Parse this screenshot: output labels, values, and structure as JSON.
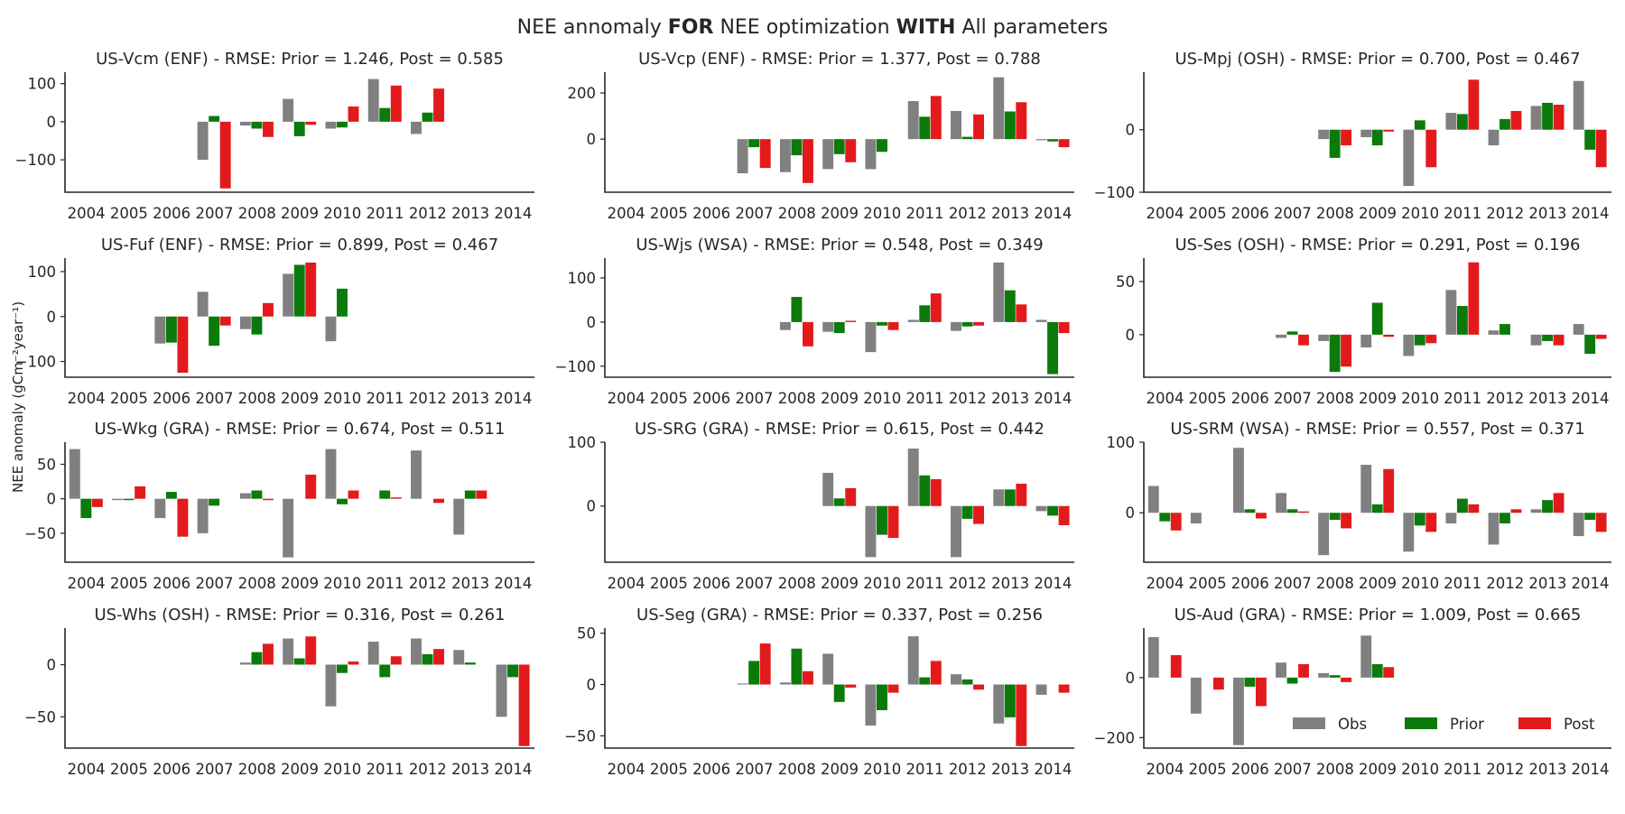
{
  "figure": {
    "suptitle": {
      "parts": [
        {
          "text": "NEE annomaly ",
          "bold": false
        },
        {
          "text": "FOR",
          "bold": true
        },
        {
          "text": " NEE optimization ",
          "bold": false
        },
        {
          "text": "WITH",
          "bold": true
        },
        {
          "text": " All parameters",
          "bold": false
        }
      ]
    },
    "ylabel": "NEE anomaly (gCm⁻²year⁻¹)",
    "legend": {
      "location": "lower-right of last panel",
      "entries": [
        {
          "label": "Obs",
          "color": "#808080"
        },
        {
          "label": "Prior",
          "color": "#0b7a0b"
        },
        {
          "label": "Post",
          "color": "#e31a1c"
        }
      ]
    }
  },
  "colors": {
    "obs": "#808080",
    "prior": "#0b7a0b",
    "post": "#e31a1c",
    "axis": "#262626"
  },
  "chart_data": [
    {
      "type": "bar",
      "title": "US-Vcm (ENF) - RMSE: Prior = 1.246, Post = 0.585",
      "categories": [
        "2004",
        "2005",
        "2006",
        "2007",
        "2008",
        "2009",
        "2010",
        "2011",
        "2012",
        "2013",
        "2014"
      ],
      "ylim": [
        -185,
        130
      ],
      "yticks": [
        -100,
        0,
        100
      ],
      "series": [
        {
          "name": "Obs",
          "values": [
            null,
            null,
            null,
            -100,
            -10,
            60,
            -18,
            112,
            -32,
            null,
            null
          ]
        },
        {
          "name": "Prior",
          "values": [
            null,
            null,
            null,
            15,
            -18,
            -38,
            -15,
            36,
            24,
            null,
            null
          ]
        },
        {
          "name": "Post",
          "values": [
            null,
            null,
            null,
            -175,
            -40,
            -8,
            40,
            95,
            87,
            null,
            null
          ]
        }
      ]
    },
    {
      "type": "bar",
      "title": "US-Vcp (ENF) - RMSE: Prior = 1.377, Post = 0.788",
      "categories": [
        "2004",
        "2005",
        "2006",
        "2007",
        "2008",
        "2009",
        "2010",
        "2011",
        "2012",
        "2013",
        "2014"
      ],
      "ylim": [
        -230,
        290
      ],
      "yticks": [
        0,
        200
      ],
      "series": [
        {
          "name": "Obs",
          "values": [
            null,
            null,
            null,
            -148,
            -143,
            -130,
            -130,
            165,
            122,
            268,
            -5
          ]
        },
        {
          "name": "Prior",
          "values": [
            null,
            null,
            null,
            -35,
            -70,
            -65,
            -55,
            97,
            10,
            120,
            -10
          ]
        },
        {
          "name": "Post",
          "values": [
            null,
            null,
            null,
            -125,
            -190,
            -100,
            null,
            187,
            107,
            160,
            -35
          ]
        }
      ]
    },
    {
      "type": "bar",
      "title": "US-Mpj (OSH) - RMSE: Prior = 0.700, Post = 0.467",
      "categories": [
        "2004",
        "2005",
        "2006",
        "2007",
        "2008",
        "2009",
        "2010",
        "2011",
        "2012",
        "2013",
        "2014"
      ],
      "ylim": [
        -100,
        92
      ],
      "yticks": [
        -100,
        0
      ],
      "series": [
        {
          "name": "Obs",
          "values": [
            null,
            null,
            null,
            null,
            -15,
            -12,
            -90,
            27,
            -25,
            38,
            78
          ]
        },
        {
          "name": "Prior",
          "values": [
            null,
            null,
            null,
            null,
            -45,
            -25,
            15,
            25,
            17,
            43,
            -32
          ]
        },
        {
          "name": "Post",
          "values": [
            null,
            null,
            null,
            null,
            -25,
            -3,
            -60,
            80,
            30,
            40,
            -60
          ]
        }
      ]
    },
    {
      "type": "bar",
      "title": "US-Fuf (ENF) - RMSE: Prior = 0.899, Post = 0.467",
      "categories": [
        "2004",
        "2005",
        "2006",
        "2007",
        "2008",
        "2009",
        "2010",
        "2011",
        "2012",
        "2013",
        "2014"
      ],
      "ylim": [
        -135,
        130
      ],
      "yticks": [
        -100,
        0,
        100
      ],
      "series": [
        {
          "name": "Obs",
          "values": [
            null,
            null,
            -60,
            55,
            -28,
            95,
            -55,
            null,
            null,
            null,
            null
          ]
        },
        {
          "name": "Prior",
          "values": [
            null,
            null,
            -58,
            -65,
            -40,
            115,
            62,
            null,
            null,
            null,
            null
          ]
        },
        {
          "name": "Post",
          "values": [
            null,
            null,
            -125,
            -20,
            30,
            120,
            null,
            null,
            null,
            null,
            null
          ]
        }
      ]
    },
    {
      "type": "bar",
      "title": "US-Wjs (WSA) - RMSE: Prior = 0.548, Post = 0.349",
      "categories": [
        "2004",
        "2005",
        "2006",
        "2007",
        "2008",
        "2009",
        "2010",
        "2011",
        "2012",
        "2013",
        "2014"
      ],
      "ylim": [
        -125,
        145
      ],
      "yticks": [
        -100,
        0,
        100
      ],
      "series": [
        {
          "name": "Obs",
          "values": [
            null,
            null,
            null,
            null,
            -18,
            -22,
            -68,
            5,
            -20,
            135,
            5
          ]
        },
        {
          "name": "Prior",
          "values": [
            null,
            null,
            null,
            null,
            57,
            -25,
            -8,
            38,
            -10,
            72,
            -118
          ]
        },
        {
          "name": "Post",
          "values": [
            null,
            null,
            null,
            null,
            -55,
            3,
            -18,
            65,
            -8,
            40,
            -25
          ]
        }
      ]
    },
    {
      "type": "bar",
      "title": "US-Ses (OSH) - RMSE: Prior = 0.291, Post = 0.196",
      "categories": [
        "2004",
        "2005",
        "2006",
        "2007",
        "2008",
        "2009",
        "2010",
        "2011",
        "2012",
        "2013",
        "2014"
      ],
      "ylim": [
        -40,
        72
      ],
      "yticks": [
        0,
        50
      ],
      "series": [
        {
          "name": "Obs",
          "values": [
            null,
            null,
            null,
            -3,
            -6,
            -12,
            -20,
            42,
            4,
            -10,
            10
          ]
        },
        {
          "name": "Prior",
          "values": [
            null,
            null,
            null,
            3,
            -35,
            30,
            -10,
            27,
            10,
            -6,
            -18
          ]
        },
        {
          "name": "Post",
          "values": [
            null,
            null,
            null,
            -10,
            -30,
            -2,
            -8,
            68,
            null,
            -10,
            -4
          ]
        }
      ]
    },
    {
      "type": "bar",
      "title": "US-Wkg (GRA) - RMSE: Prior = 0.674, Post = 0.511",
      "categories": [
        "2004",
        "2005",
        "2006",
        "2007",
        "2008",
        "2009",
        "2010",
        "2011",
        "2012",
        "2013",
        "2014"
      ],
      "ylim": [
        -92,
        82
      ],
      "yticks": [
        -50,
        0,
        50
      ],
      "series": [
        {
          "name": "Obs",
          "values": [
            72,
            -2,
            -28,
            -50,
            8,
            -85,
            72,
            null,
            70,
            -52,
            null
          ]
        },
        {
          "name": "Prior",
          "values": [
            -28,
            -2,
            10,
            -10,
            12,
            null,
            -8,
            12,
            null,
            12,
            null
          ]
        },
        {
          "name": "Post",
          "values": [
            -12,
            18,
            -55,
            null,
            -2,
            35,
            12,
            2,
            -6,
            12,
            null
          ]
        }
      ]
    },
    {
      "type": "bar",
      "title": "US-SRG (GRA) - RMSE: Prior = 0.615, Post = 0.442",
      "categories": [
        "2004",
        "2005",
        "2006",
        "2007",
        "2008",
        "2009",
        "2010",
        "2011",
        "2012",
        "2013",
        "2014"
      ],
      "ylim": [
        -88,
        100
      ],
      "yticks": [
        0,
        100
      ],
      "series": [
        {
          "name": "Obs",
          "values": [
            null,
            null,
            null,
            null,
            null,
            52,
            -80,
            90,
            -80,
            26,
            -8
          ]
        },
        {
          "name": "Prior",
          "values": [
            null,
            null,
            null,
            null,
            null,
            12,
            -45,
            48,
            -20,
            26,
            -15
          ]
        },
        {
          "name": "Post",
          "values": [
            null,
            null,
            null,
            null,
            null,
            28,
            -50,
            42,
            -28,
            35,
            -30
          ]
        }
      ]
    },
    {
      "type": "bar",
      "title": "US-SRM (WSA) - RMSE: Prior = 0.557, Post = 0.371",
      "categories": [
        "2004",
        "2005",
        "2006",
        "2007",
        "2008",
        "2009",
        "2010",
        "2011",
        "2012",
        "2013",
        "2014"
      ],
      "ylim": [
        -70,
        100
      ],
      "yticks": [
        0,
        100
      ],
      "series": [
        {
          "name": "Obs",
          "values": [
            38,
            -15,
            92,
            28,
            -60,
            68,
            -55,
            -15,
            -45,
            5,
            -33
          ]
        },
        {
          "name": "Prior",
          "values": [
            -12,
            null,
            5,
            5,
            -10,
            12,
            -18,
            20,
            -15,
            18,
            -10
          ]
        },
        {
          "name": "Post",
          "values": [
            -25,
            null,
            -8,
            2,
            -22,
            62,
            -27,
            12,
            5,
            28,
            -27
          ]
        }
      ]
    },
    {
      "type": "bar",
      "title": "US-Whs (OSH) - RMSE: Prior = 0.316, Post = 0.261",
      "categories": [
        "2004",
        "2005",
        "2006",
        "2007",
        "2008",
        "2009",
        "2010",
        "2011",
        "2012",
        "2013",
        "2014"
      ],
      "ylim": [
        -80,
        35
      ],
      "yticks": [
        -50,
        0
      ],
      "series": [
        {
          "name": "Obs",
          "values": [
            null,
            null,
            null,
            null,
            2,
            25,
            -40,
            22,
            25,
            14,
            -50
          ]
        },
        {
          "name": "Prior",
          "values": [
            null,
            null,
            null,
            null,
            12,
            6,
            -8,
            -12,
            10,
            2,
            -12
          ]
        },
        {
          "name": "Post",
          "values": [
            null,
            null,
            null,
            null,
            20,
            27,
            3,
            8,
            15,
            null,
            -78
          ]
        }
      ]
    },
    {
      "type": "bar",
      "title": "US-Seg (GRA) - RMSE: Prior = 0.337, Post = 0.256",
      "categories": [
        "2004",
        "2005",
        "2006",
        "2007",
        "2008",
        "2009",
        "2010",
        "2011",
        "2012",
        "2013",
        "2014"
      ],
      "ylim": [
        -62,
        55
      ],
      "yticks": [
        -50,
        0,
        50
      ],
      "series": [
        {
          "name": "Obs",
          "values": [
            null,
            null,
            null,
            1,
            2,
            30,
            -40,
            47,
            10,
            -38,
            -10
          ]
        },
        {
          "name": "Prior",
          "values": [
            null,
            null,
            null,
            23,
            35,
            -17,
            -25,
            7,
            5,
            -32,
            null
          ]
        },
        {
          "name": "Post",
          "values": [
            null,
            null,
            null,
            40,
            13,
            -3,
            -8,
            23,
            -5,
            -60,
            -8
          ]
        }
      ]
    },
    {
      "type": "bar",
      "title": "US-Aud (GRA) - RMSE: Prior = 1.009, Post = 0.665",
      "categories": [
        "2004",
        "2005",
        "2006",
        "2007",
        "2008",
        "2009",
        "2010",
        "2011",
        "2012",
        "2013",
        "2014"
      ],
      "ylim": [
        -235,
        165
      ],
      "yticks": [
        -200,
        0
      ],
      "series": [
        {
          "name": "Obs",
          "values": [
            135,
            -120,
            -225,
            50,
            15,
            140,
            null,
            null,
            null,
            null,
            null
          ]
        },
        {
          "name": "Prior",
          "values": [
            null,
            null,
            -30,
            -20,
            8,
            45,
            null,
            null,
            null,
            null,
            null
          ]
        },
        {
          "name": "Post",
          "values": [
            75,
            -40,
            -95,
            45,
            -15,
            35,
            null,
            null,
            null,
            null,
            null
          ]
        }
      ]
    }
  ]
}
